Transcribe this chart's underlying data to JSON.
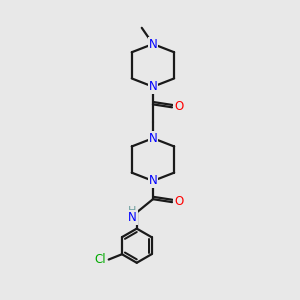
{
  "bg_color": "#e8e8e8",
  "bond_color": "#1a1a1a",
  "N_color": "#0000ff",
  "O_color": "#ff0000",
  "Cl_color": "#00aa00",
  "H_color": "#70a0a0",
  "line_width": 1.6,
  "font_size": 8.5,
  "fig_size": [
    3.0,
    3.0
  ],
  "dpi": 100,
  "xlim": [
    0,
    10
  ],
  "ylim": [
    0,
    10
  ]
}
